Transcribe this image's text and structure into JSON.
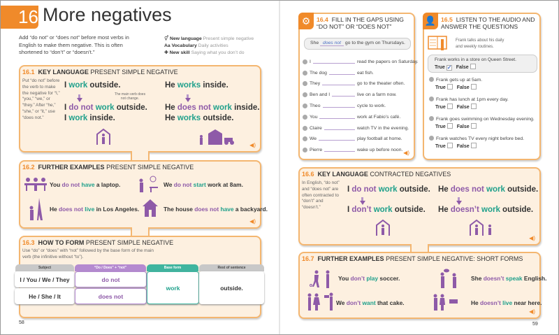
{
  "left_page": {
    "unit_number": "16",
    "title": "More negatives",
    "intro": "Add “do not” or “does not” before most verbs in English to make them negative. This is often shortened to “don’t” or “doesn’t.”",
    "legend": [
      {
        "icon": "gender-symbol-icon",
        "label": "New language",
        "value": "Present simple negative"
      },
      {
        "icon": "letters-aa-icon",
        "label": "Vocabulary",
        "value": "Daily activities"
      },
      {
        "icon": "puzzle-piece-icon",
        "label": "New skill",
        "value": "Saying what you don’t do"
      }
    ],
    "s161": {
      "num": "16.1",
      "kind": "Key language",
      "topic": "Present simple negative",
      "note": "Put “do not” before the verb to make the negative for “I,” “you,” “we,” or “they.” After “he,” “she,” or “it,” use “does not.”",
      "callout": "The main verb does not change.",
      "left": [
        [
          [
            "I ",
            ""
          ],
          [
            "work",
            "t"
          ],
          [
            " outside.",
            ""
          ]
        ],
        [
          [
            "I ",
            ""
          ],
          [
            "do not",
            "p"
          ],
          [
            " ",
            ""
          ],
          [
            "work",
            "t"
          ],
          [
            " outside.",
            ""
          ]
        ],
        [
          [
            "I ",
            ""
          ],
          [
            "work",
            "t"
          ],
          [
            " inside.",
            ""
          ]
        ]
      ],
      "right": [
        [
          [
            "He ",
            ""
          ],
          [
            "works",
            "t"
          ],
          [
            " inside.",
            ""
          ]
        ],
        [
          [
            "He ",
            ""
          ],
          [
            "does not",
            "p"
          ],
          [
            " ",
            ""
          ],
          [
            "work",
            "t"
          ],
          [
            " inside.",
            ""
          ]
        ],
        [
          [
            "He ",
            ""
          ],
          [
            "works",
            "t"
          ],
          [
            " outside.",
            ""
          ]
        ]
      ]
    },
    "s162": {
      "num": "16.2",
      "kind": "Further examples",
      "topic": "Present simple negative",
      "items": [
        [
          [
            "You ",
            ""
          ],
          [
            "do not",
            "p"
          ],
          [
            " ",
            ""
          ],
          [
            "have",
            "t"
          ],
          [
            " a laptop.",
            ""
          ]
        ],
        [
          [
            "We ",
            ""
          ],
          [
            "do not",
            "p"
          ],
          [
            " ",
            ""
          ],
          [
            "start",
            "t"
          ],
          [
            " work at 8am.",
            ""
          ]
        ],
        [
          [
            "He ",
            ""
          ],
          [
            "does not",
            "p"
          ],
          [
            " ",
            ""
          ],
          [
            "live",
            "t"
          ],
          [
            " in Los Angeles.",
            ""
          ]
        ],
        [
          [
            "The house ",
            ""
          ],
          [
            "does not",
            "p"
          ],
          [
            " ",
            ""
          ],
          [
            "have",
            "t"
          ],
          [
            " a backyard.",
            ""
          ]
        ]
      ]
    },
    "s163": {
      "num": "16.3",
      "kind": "How to form",
      "topic": "Present simple negative",
      "note": "Use “do” or “does” with “not” followed by the base form of the main verb (the infinitive without “to”).",
      "headers": [
        "Subject",
        "“Do / Does” + “not”",
        "Base form",
        "Rest of sentence"
      ],
      "subjects": [
        "I / You / We / They",
        "He / She / It"
      ],
      "aux": [
        "do not",
        "does not"
      ],
      "base": "work",
      "rest": "outside."
    },
    "page_number": "58"
  },
  "right_page": {
    "s164": {
      "num": "16.4",
      "title": "Fill in the gaps using “do not” or “does not”",
      "example": {
        "before": "She",
        "answer": "does not",
        "after": "go to the gym on Thursdays."
      },
      "items": [
        {
          "n": "1",
          "before": "I",
          "after": "read the papers on Saturday."
        },
        {
          "n": "2",
          "before": "The dog",
          "after": "eat fish."
        },
        {
          "n": "3",
          "before": "They",
          "after": "go to the theater often."
        },
        {
          "n": "4",
          "before": "Ben and I",
          "after": "live on a farm now."
        },
        {
          "n": "5",
          "before": "Theo",
          "after": "cycle to work."
        },
        {
          "n": "6",
          "before": "You",
          "after": "work at Fabio’s café."
        },
        {
          "n": "7",
          "before": "Claire",
          "after": "watch TV in the evening."
        },
        {
          "n": "8",
          "before": "We",
          "after": "play football at home."
        },
        {
          "n": "9",
          "before": "Pierre",
          "after": "wake up before noon."
        }
      ]
    },
    "s165": {
      "num": "16.5",
      "title": "Listen to the audio and answer the questions",
      "intro": "Frank talks about his daily and weekly routines.",
      "true_label": "True",
      "false_label": "False",
      "example": {
        "q": "Frank works in a store on Queen Street.",
        "answer": "True"
      },
      "items": [
        {
          "n": "1",
          "q": "Frank gets up at 5am."
        },
        {
          "n": "2",
          "q": "Frank has lunch at 1pm every day."
        },
        {
          "n": "3",
          "q": "Frank goes swimming on Wednesday evening."
        },
        {
          "n": "4",
          "q": "Frank watches TV every night before bed."
        }
      ]
    },
    "s166": {
      "num": "16.6",
      "kind": "Key language",
      "topic": "Contracted negatives",
      "note": "In English, “do not” and “does not” are often contracted to “don’t” and “doesn’t.”",
      "left": [
        [
          [
            "I ",
            ""
          ],
          [
            "do not",
            "p"
          ],
          [
            " ",
            ""
          ],
          [
            "work",
            "t"
          ],
          [
            " outside.",
            ""
          ]
        ],
        [
          [
            "I ",
            ""
          ],
          [
            "don’t",
            "p"
          ],
          [
            " ",
            ""
          ],
          [
            "work",
            "t"
          ],
          [
            " outside.",
            ""
          ]
        ]
      ],
      "right": [
        [
          [
            "He ",
            ""
          ],
          [
            "does not",
            "p"
          ],
          [
            " ",
            ""
          ],
          [
            "work",
            "t"
          ],
          [
            " outside.",
            ""
          ]
        ],
        [
          [
            "He ",
            ""
          ],
          [
            "doesn’t",
            "p"
          ],
          [
            " ",
            ""
          ],
          [
            "work",
            "t"
          ],
          [
            " outside.",
            ""
          ]
        ]
      ]
    },
    "s167": {
      "num": "16.7",
      "kind": "Further examples",
      "topic": "Present simple negative: short forms",
      "items": [
        [
          [
            "You ",
            ""
          ],
          [
            "don’t",
            "p"
          ],
          [
            " ",
            ""
          ],
          [
            "play",
            "t"
          ],
          [
            " soccer.",
            ""
          ]
        ],
        [
          [
            "She ",
            ""
          ],
          [
            "doesn’t",
            "p"
          ],
          [
            " ",
            ""
          ],
          [
            "speak",
            "t"
          ],
          [
            " English.",
            ""
          ]
        ],
        [
          [
            "We ",
            ""
          ],
          [
            "don’t",
            "p"
          ],
          [
            " ",
            ""
          ],
          [
            "want",
            "t"
          ],
          [
            " that cake.",
            ""
          ]
        ],
        [
          [
            "He ",
            ""
          ],
          [
            "doesn’t",
            "p"
          ],
          [
            " ",
            ""
          ],
          [
            "live",
            "t"
          ],
          [
            " near here.",
            ""
          ]
        ]
      ]
    },
    "page_number": "59"
  },
  "colors": {
    "accent": "#f08a2a",
    "purple": "#8e5aa8",
    "teal": "#1fa08b",
    "panel": "#fdf0e0"
  }
}
